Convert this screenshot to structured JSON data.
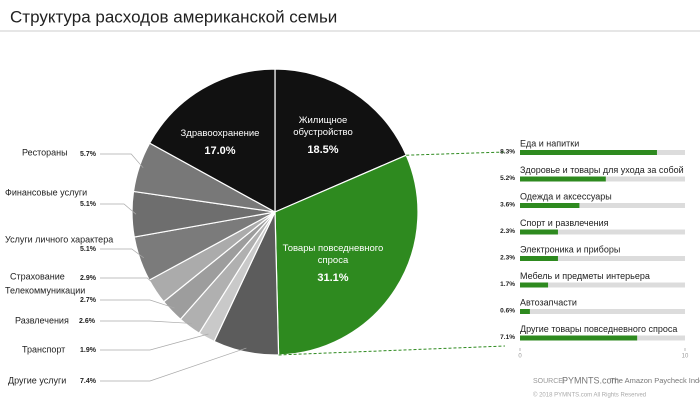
{
  "chart_data": [
    {
      "type": "pie",
      "title": "Структура расходов американской семьи",
      "categories": [
        "Жилищное обустройство",
        "Товары повседневного спроса",
        "Другие услуги",
        "Транспорт",
        "Развлечения",
        "Телекоммуникации",
        "Страхование",
        "Услуги личного характера",
        "Финансовые услуги",
        "Рестораны",
        "Здравоохранение"
      ],
      "values": [
        18.5,
        31.1,
        7.4,
        1.9,
        2.6,
        2.7,
        2.9,
        5.1,
        5.1,
        5.7,
        17.0
      ],
      "value_labels": [
        "18.5%",
        "31.1%",
        "7.4%",
        "1.9%",
        "2.6%",
        "2.7%",
        "2.9%",
        "5.1%",
        "5.1%",
        "5.7%",
        "17.0%"
      ],
      "colors": [
        "#111111",
        "#2e8a1f",
        "#5c5c5c",
        "#c9c9c9",
        "#b0b0b0",
        "#9d9d9d",
        "#ababab",
        "#7b7b7b",
        "#6e6e6e",
        "#787878",
        "#111111"
      ]
    },
    {
      "type": "bar",
      "orientation": "horizontal",
      "categories": [
        "Еда и напитки",
        "Здоровье и товары для ухода за собой",
        "Одежда и аксессуары",
        "Спорт и развлечения",
        "Электроника и приборы",
        "Мебель и предметы интерьера",
        "Автозапчасти",
        "Другие товары повседневного спроса"
      ],
      "values": [
        8.3,
        5.2,
        3.6,
        2.3,
        2.3,
        1.7,
        0.6,
        7.1
      ],
      "value_labels": [
        "8.3%",
        "5.2%",
        "3.6%",
        "2.3%",
        "2.3%",
        "1.7%",
        "0.6%",
        "7.1%"
      ],
      "color": "#2e8a1f",
      "track_color": "#dcdcdc",
      "xlim": [
        0,
        10
      ],
      "xticks": [
        0,
        10
      ]
    }
  ],
  "source": {
    "label": "SOURCE:",
    "name": "PYMNTS.com",
    "index": "The Amazon Paycheck Index",
    "copyright": "© 2018 PYMNTS.com All Rights Reserved"
  }
}
